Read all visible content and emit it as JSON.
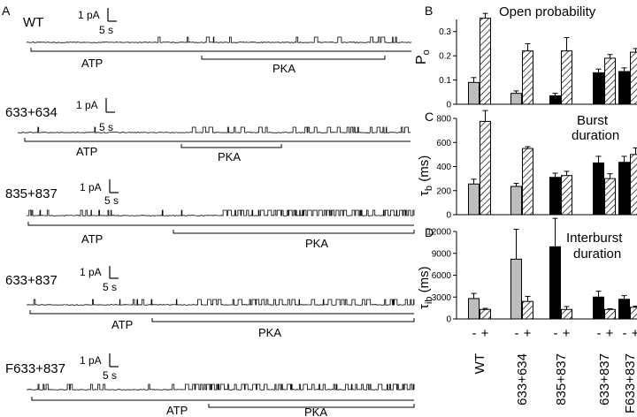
{
  "panel_a": {
    "label": "A",
    "scale": {
      "current": "1 pA",
      "time": "5 s"
    },
    "atp_label": "ATP",
    "pka_label": "PKA",
    "traces": [
      {
        "name": "WT",
        "activity": [
          0.01,
          0.06
        ],
        "pka_start": 0.45
      },
      {
        "name": "633+634",
        "activity": [
          0.01,
          0.09
        ],
        "pka_start": 0.42
      },
      {
        "name": "835+837",
        "activity": [
          0.12,
          0.55
        ],
        "pka_start": 0.5
      },
      {
        "name": "633+837",
        "activity": [
          0.08,
          0.22
        ],
        "pka_start": 0.4
      },
      {
        "name": "F633+837",
        "activity": [
          0.12,
          0.4
        ],
        "pka_start": 0.4
      }
    ]
  },
  "chart_data": [
    {
      "panel": "B",
      "type": "bar",
      "title": "Open probability",
      "ylabel": "P_o",
      "ylim": [
        0,
        0.35
      ],
      "yticks": [
        "0",
        "0.1",
        "0.2",
        "0.3"
      ],
      "categories": [
        "WT",
        "633+634",
        "835+837",
        "633+837",
        "F633+837"
      ],
      "series": [
        {
          "name": "-",
          "values": [
            0.09,
            0.045,
            0.035,
            0.13,
            0.135
          ],
          "errors": [
            0.02,
            0.01,
            0.01,
            0.015,
            0.015
          ]
        },
        {
          "name": "+",
          "values": [
            0.355,
            0.22,
            0.22,
            0.19,
            0.215
          ],
          "errors": [
            0.02,
            0.03,
            0.055,
            0.015,
            0.015
          ]
        }
      ],
      "minus_fill": [
        "#bdbdbd",
        "#bdbdbd",
        "#000000",
        "#000000",
        "#000000"
      ]
    },
    {
      "panel": "C",
      "type": "bar",
      "title": "Burst duration",
      "ylabel": "τ_b (ms)",
      "ylim": [
        0,
        800
      ],
      "yticks": [
        "0",
        "200",
        "400",
        "600",
        "800"
      ],
      "categories": [
        "WT",
        "633+634",
        "835+837",
        "633+837",
        "F633+837"
      ],
      "series": [
        {
          "name": "-",
          "values": [
            255,
            235,
            310,
            430,
            435
          ],
          "errors": [
            40,
            25,
            35,
            55,
            50
          ]
        },
        {
          "name": "+",
          "values": [
            775,
            550,
            325,
            300,
            500
          ],
          "errors": [
            90,
            15,
            35,
            40,
            55
          ]
        }
      ],
      "minus_fill": [
        "#bdbdbd",
        "#bdbdbd",
        "#000000",
        "#000000",
        "#000000"
      ]
    },
    {
      "panel": "D",
      "type": "bar",
      "title": "Interburst duration",
      "ylabel": "τ_ib (ms)",
      "ylim": [
        0,
        12000
      ],
      "yticks": [
        "0",
        "3000",
        "6000",
        "9000",
        "12000"
      ],
      "categories": [
        "WT",
        "633+634",
        "835+837",
        "633+837",
        "F633+837"
      ],
      "series": [
        {
          "name": "-",
          "values": [
            2800,
            8200,
            9900,
            3000,
            2700
          ],
          "errors": [
            700,
            4100,
            3900,
            800,
            500
          ]
        },
        {
          "name": "+",
          "values": [
            1300,
            2400,
            1300,
            1300,
            1600
          ],
          "errors": [
            150,
            700,
            400,
            100,
            150
          ]
        }
      ],
      "minus_fill": [
        "#bdbdbd",
        "#bdbdbd",
        "#000000",
        "#000000",
        "#000000"
      ]
    }
  ],
  "panel_labels": {
    "b": "B",
    "c": "C",
    "d": "D"
  },
  "condition_labels": [
    "-",
    "+"
  ],
  "ylabels": {
    "b": {
      "main": "P",
      "sub": "o"
    },
    "c": {
      "main": "τ",
      "sub": "b",
      "unit": " (ms)"
    },
    "d": {
      "main": "τ",
      "sub": "ib",
      "unit": " (ms)"
    }
  },
  "titles": {
    "b": [
      "Open probability"
    ],
    "c": [
      "Burst",
      "duration"
    ],
    "d": [
      "Interburst",
      "duration"
    ]
  },
  "x_categories": [
    "WT",
    "633+634",
    "835+837",
    "633+837",
    "F633+837"
  ]
}
